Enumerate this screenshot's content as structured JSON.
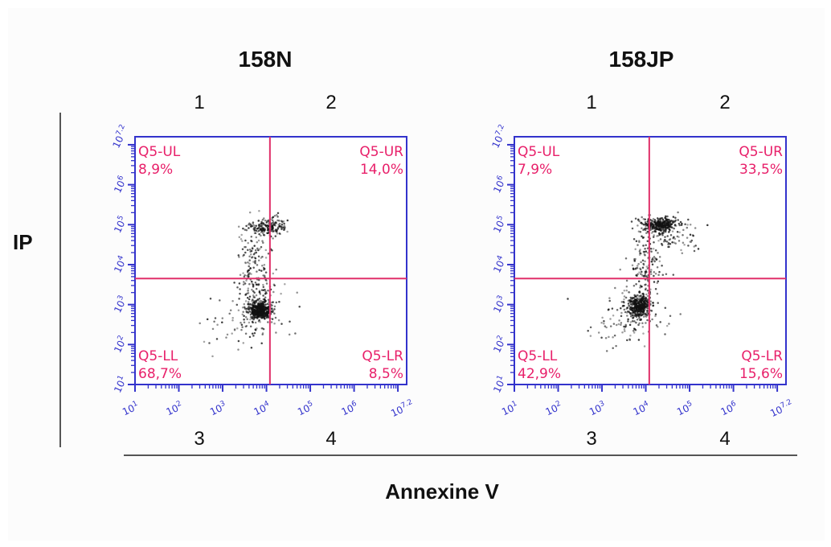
{
  "figure": {
    "y_label": "IP",
    "x_label": "Annexine V",
    "quadrant_numbers_top": [
      "1",
      "2"
    ],
    "quadrant_numbers_bottom": [
      "3",
      "4"
    ]
  },
  "colors": {
    "axis": "#3333cc",
    "gate": "#e0306a",
    "gate_text": "#e8206a",
    "dots": "#111111"
  },
  "chart_data": [
    {
      "type": "scatter",
      "title": "158N",
      "xlabel": "Annexine V",
      "ylabel": "IP",
      "scale": "log10",
      "xlim": [
        10,
        15848931.92
      ],
      "ylim": [
        10,
        15848931.92
      ],
      "x_tick_labels": [
        "10^1",
        "10^2",
        "10^3",
        "10^4",
        "10^5",
        "10^6",
        "10^7.2"
      ],
      "y_tick_labels": [
        "10^1",
        "10^2",
        "10^3",
        "10^4",
        "10^5",
        "10^6",
        "10^7.2"
      ],
      "gate": {
        "x": 12000,
        "y": 4500
      },
      "quadrants": [
        {
          "name": "Q5-UL",
          "percent": "8,9%"
        },
        {
          "name": "Q5-UR",
          "percent": "14,0%"
        },
        {
          "name": "Q5-LL",
          "percent": "68,7%"
        },
        {
          "name": "Q5-LR",
          "percent": "8,5%"
        }
      ],
      "populations": [
        {
          "center_log": [
            3.85,
            2.85
          ],
          "spread_log": [
            0.12,
            0.1
          ],
          "count": 520
        },
        {
          "center_log": [
            3.8,
            3.35
          ],
          "spread_log": [
            0.25,
            0.35
          ],
          "count": 120
        },
        {
          "center_log": [
            4.05,
            4.95
          ],
          "spread_log": [
            0.2,
            0.12
          ],
          "count": 180
        },
        {
          "center_log": [
            3.7,
            4.2
          ],
          "spread_log": [
            0.18,
            0.45
          ],
          "count": 90
        },
        {
          "center_log": [
            3.6,
            2.6
          ],
          "spread_log": [
            0.45,
            0.35
          ],
          "count": 90
        }
      ]
    },
    {
      "type": "scatter",
      "title": "158JP",
      "xlabel": "Annexine V",
      "ylabel": "IP",
      "scale": "log10",
      "xlim": [
        10,
        15848931.92
      ],
      "ylim": [
        10,
        15848931.92
      ],
      "x_tick_labels": [
        "10^1",
        "10^2",
        "10^3",
        "10^4",
        "10^5",
        "10^6",
        "10^7.2"
      ],
      "y_tick_labels": [
        "10^1",
        "10^2",
        "10^3",
        "10^4",
        "10^5",
        "10^6",
        "10^7.2"
      ],
      "gate": {
        "x": 12000,
        "y": 4500
      },
      "quadrants": [
        {
          "name": "Q5-UL",
          "percent": "7,9%"
        },
        {
          "name": "Q5-UR",
          "percent": "33,5%"
        },
        {
          "name": "Q5-LL",
          "percent": "42,9%"
        },
        {
          "name": "Q5-LR",
          "percent": "15,6%"
        }
      ],
      "populations": [
        {
          "center_log": [
            3.85,
            2.95
          ],
          "spread_log": [
            0.13,
            0.14
          ],
          "count": 420
        },
        {
          "center_log": [
            4.35,
            5.0
          ],
          "spread_log": [
            0.2,
            0.08
          ],
          "count": 320
        },
        {
          "center_log": [
            4.0,
            4.0
          ],
          "spread_log": [
            0.2,
            0.55
          ],
          "count": 160
        },
        {
          "center_log": [
            4.6,
            4.7
          ],
          "spread_log": [
            0.3,
            0.25
          ],
          "count": 90
        },
        {
          "center_log": [
            3.6,
            2.7
          ],
          "spread_log": [
            0.45,
            0.4
          ],
          "count": 110
        }
      ]
    }
  ]
}
